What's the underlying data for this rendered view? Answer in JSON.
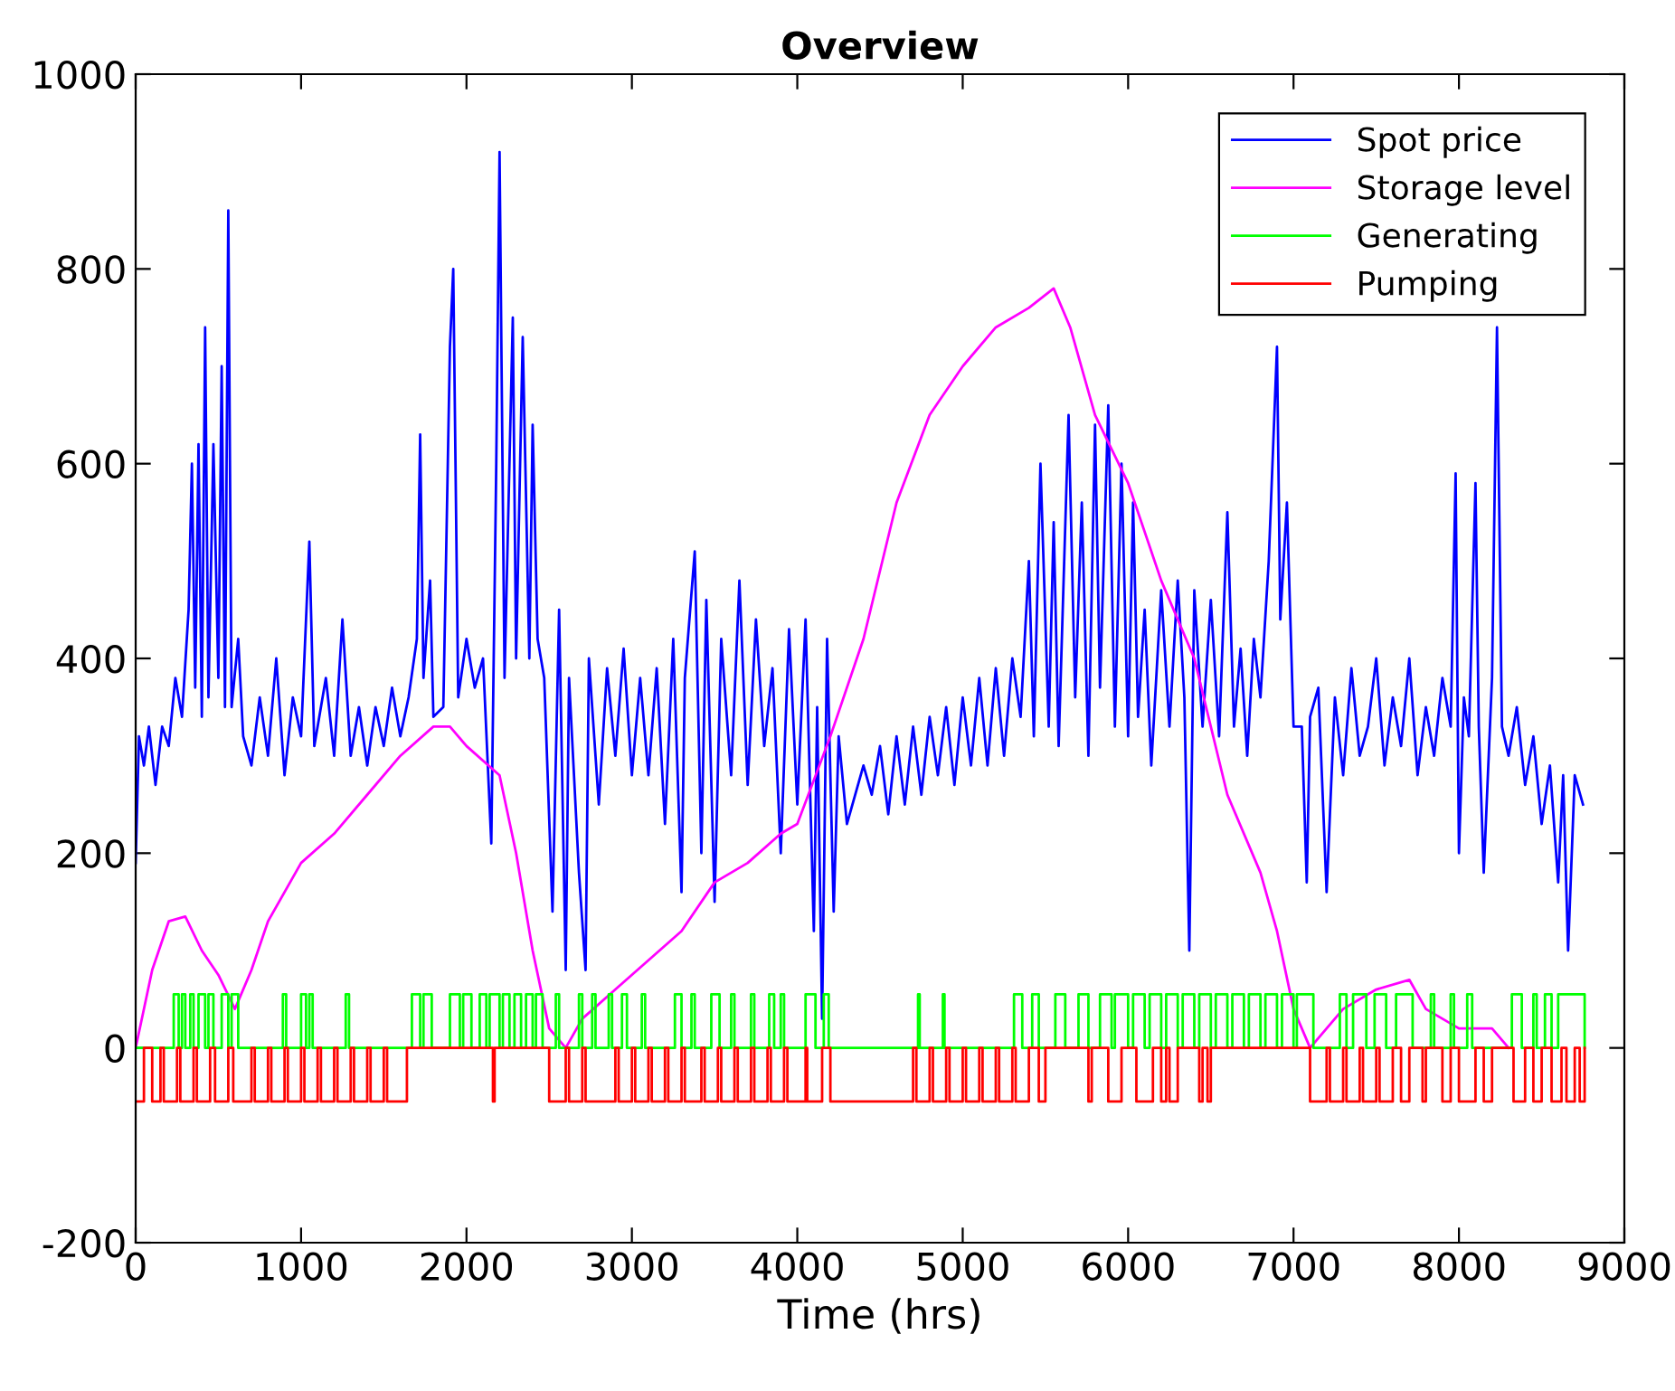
{
  "chart_data": {
    "type": "line",
    "title": "Overview",
    "xlabel": "Time (hrs)",
    "xlim": [
      0,
      9000
    ],
    "ylim": [
      -200,
      1000
    ],
    "xticks": [
      0,
      1000,
      2000,
      3000,
      4000,
      5000,
      6000,
      7000,
      8000,
      9000
    ],
    "yticks": [
      -200,
      0,
      200,
      400,
      600,
      800,
      1000
    ],
    "grid": false,
    "legend": "top right",
    "line_style": "solid",
    "marker": "none",
    "series": [
      {
        "name": "Spot price",
        "color": "#0000ff",
        "x": [
          0,
          20,
          50,
          80,
          120,
          160,
          200,
          240,
          280,
          320,
          340,
          360,
          380,
          400,
          420,
          440,
          470,
          500,
          520,
          540,
          560,
          580,
          620,
          650,
          700,
          750,
          800,
          850,
          900,
          950,
          1000,
          1050,
          1080,
          1150,
          1200,
          1250,
          1300,
          1350,
          1400,
          1450,
          1500,
          1550,
          1600,
          1650,
          1700,
          1720,
          1740,
          1780,
          1800,
          1860,
          1900,
          1920,
          1950,
          2000,
          2050,
          2100,
          2150,
          2180,
          2200,
          2230,
          2280,
          2300,
          2340,
          2380,
          2400,
          2430,
          2470,
          2520,
          2560,
          2600,
          2620,
          2680,
          2720,
          2740,
          2800,
          2850,
          2900,
          2950,
          3000,
          3050,
          3100,
          3150,
          3200,
          3250,
          3300,
          3320,
          3380,
          3420,
          3450,
          3500,
          3540,
          3600,
          3650,
          3700,
          3750,
          3800,
          3850,
          3900,
          3950,
          4000,
          4050,
          4100,
          4120,
          4150,
          4180,
          4220,
          4250,
          4300,
          4400,
          4450,
          4500,
          4550,
          4600,
          4650,
          4700,
          4750,
          4800,
          4850,
          4900,
          4950,
          5000,
          5050,
          5100,
          5150,
          5200,
          5250,
          5300,
          5350,
          5400,
          5430,
          5470,
          5520,
          5550,
          5580,
          5640,
          5680,
          5720,
          5760,
          5800,
          5830,
          5880,
          5920,
          5960,
          6000,
          6030,
          6060,
          6100,
          6140,
          6200,
          6250,
          6300,
          6340,
          6370,
          6400,
          6450,
          6500,
          6550,
          6600,
          6640,
          6680,
          6720,
          6760,
          6800,
          6850,
          6900,
          6920,
          6960,
          7000,
          7050,
          7080,
          7100,
          7150,
          7200,
          7250,
          7300,
          7350,
          7400,
          7450,
          7500,
          7550,
          7600,
          7650,
          7700,
          7750,
          7800,
          7850,
          7900,
          7950,
          7980,
          8000,
          8030,
          8060,
          8100,
          8120,
          8150,
          8200,
          8230,
          8260,
          8300,
          8350,
          8400,
          8450,
          8500,
          8550,
          8600,
          8630,
          8660,
          8700,
          8750
        ],
        "values": [
          190,
          320,
          290,
          330,
          270,
          330,
          310,
          380,
          340,
          450,
          600,
          370,
          620,
          340,
          740,
          360,
          620,
          380,
          700,
          350,
          860,
          350,
          420,
          320,
          290,
          360,
          300,
          400,
          280,
          360,
          320,
          520,
          310,
          380,
          300,
          440,
          300,
          350,
          290,
          350,
          310,
          370,
          320,
          360,
          420,
          630,
          380,
          480,
          340,
          350,
          720,
          800,
          360,
          420,
          370,
          400,
          210,
          600,
          920,
          380,
          750,
          400,
          730,
          400,
          640,
          420,
          380,
          140,
          450,
          80,
          380,
          180,
          80,
          400,
          250,
          390,
          300,
          410,
          280,
          380,
          280,
          390,
          230,
          420,
          160,
          380,
          510,
          200,
          460,
          150,
          420,
          280,
          480,
          270,
          440,
          310,
          390,
          200,
          430,
          250,
          440,
          120,
          350,
          30,
          420,
          140,
          320,
          230,
          290,
          260,
          310,
          240,
          320,
          250,
          330,
          260,
          340,
          280,
          350,
          270,
          360,
          290,
          380,
          290,
          390,
          300,
          400,
          340,
          500,
          320,
          600,
          330,
          540,
          310,
          650,
          360,
          560,
          300,
          640,
          370,
          660,
          330,
          600,
          320,
          560,
          340,
          450,
          290,
          470,
          330,
          480,
          360,
          100,
          470,
          330,
          460,
          320,
          550,
          330,
          410,
          300,
          420,
          360,
          500,
          720,
          440,
          560,
          330,
          330,
          170,
          340,
          370,
          160,
          360,
          280,
          390,
          300,
          330,
          400,
          290,
          360,
          310,
          400,
          280,
          350,
          300,
          380,
          330,
          590,
          200,
          360,
          320,
          580,
          330,
          180,
          380,
          740,
          330,
          300,
          350,
          270,
          320,
          230,
          290,
          170,
          280,
          100,
          280,
          250
        ]
      },
      {
        "name": "Storage level",
        "color": "#ff00ff",
        "x": [
          0,
          100,
          200,
          300,
          400,
          500,
          600,
          700,
          800,
          1000,
          1200,
          1400,
          1600,
          1800,
          1900,
          2000,
          2200,
          2300,
          2400,
          2500,
          2600,
          2700,
          2900,
          3100,
          3300,
          3500,
          3700,
          3900,
          4000,
          4200,
          4400,
          4600,
          4800,
          5000,
          5200,
          5400,
          5550,
          5650,
          5800,
          6000,
          6200,
          6400,
          6600,
          6800,
          6900,
          7000,
          7100,
          7300,
          7500,
          7700,
          7800,
          8000,
          8200,
          8300
        ],
        "values": [
          0,
          80,
          130,
          135,
          100,
          75,
          40,
          80,
          130,
          190,
          220,
          260,
          300,
          330,
          330,
          310,
          280,
          200,
          100,
          20,
          0,
          30,
          60,
          90,
          120,
          170,
          190,
          220,
          230,
          320,
          420,
          560,
          650,
          700,
          740,
          760,
          780,
          740,
          650,
          580,
          480,
          400,
          260,
          180,
          120,
          40,
          0,
          40,
          60,
          70,
          40,
          20,
          20,
          0
        ]
      },
      {
        "name": "Generating",
        "color": "#00ff00",
        "type": "step",
        "x": [
          0,
          230,
          260,
          280,
          300,
          330,
          350,
          380,
          420,
          440,
          470,
          520,
          560,
          580,
          620,
          890,
          910,
          1000,
          1030,
          1050,
          1070,
          1270,
          1290,
          1670,
          1720,
          1740,
          1790,
          1900,
          1960,
          1980,
          2030,
          2080,
          2120,
          2140,
          2200,
          2220,
          2260,
          2290,
          2330,
          2360,
          2400,
          2420,
          2460,
          2540,
          2560,
          2680,
          2700,
          2760,
          2780,
          2860,
          2880,
          2940,
          2970,
          3060,
          3080,
          3260,
          3300,
          3360,
          3380,
          3480,
          3530,
          3600,
          3620,
          3720,
          3740,
          3830,
          3860,
          3900,
          3920,
          4050,
          4110,
          4160,
          4190,
          4730,
          4740,
          4880,
          4890,
          5310,
          5360,
          5420,
          5460,
          5560,
          5620,
          5700,
          5760,
          5830,
          5900,
          5920,
          6000,
          6030,
          6100,
          6130,
          6200,
          6230,
          6300,
          6330,
          6400,
          6430,
          6500,
          6530,
          6600,
          6630,
          6700,
          6730,
          6800,
          6830,
          6900,
          6930,
          7000,
          7020,
          7120,
          7280,
          7320,
          7360,
          7440,
          7490,
          7560,
          7620,
          7720,
          7830,
          7850,
          7950,
          7970,
          8050,
          8080,
          8320,
          8380,
          8450,
          8470,
          8520,
          8560,
          8600,
          8760
        ],
        "values": [
          0,
          55,
          0,
          55,
          0,
          55,
          0,
          55,
          0,
          55,
          0,
          55,
          0,
          55,
          0,
          55,
          0,
          55,
          0,
          55,
          0,
          55,
          0,
          55,
          0,
          55,
          0,
          55,
          0,
          55,
          0,
          55,
          0,
          55,
          0,
          55,
          0,
          55,
          0,
          55,
          0,
          55,
          0,
          55,
          0,
          55,
          0,
          55,
          0,
          55,
          0,
          55,
          0,
          55,
          0,
          55,
          0,
          55,
          0,
          55,
          0,
          55,
          0,
          55,
          0,
          55,
          0,
          55,
          0,
          55,
          0,
          55,
          0,
          55,
          0,
          55,
          0,
          55,
          0,
          55,
          0,
          55,
          0,
          55,
          0,
          55,
          0,
          55,
          0,
          55,
          0,
          55,
          0,
          55,
          0,
          55,
          0,
          55,
          0,
          55,
          0,
          55,
          0,
          55,
          0,
          55,
          0,
          55,
          0,
          55,
          0,
          55,
          0,
          55,
          0,
          55,
          0,
          55,
          0,
          55,
          0,
          55,
          0,
          55,
          0,
          55,
          0,
          55,
          0,
          55,
          0,
          55,
          0
        ]
      },
      {
        "name": "Pumping",
        "color": "#ff0000",
        "type": "step",
        "x": [
          0,
          50,
          100,
          150,
          170,
          250,
          270,
          350,
          370,
          450,
          480,
          560,
          590,
          700,
          720,
          800,
          820,
          900,
          920,
          1000,
          1020,
          1100,
          1120,
          1200,
          1220,
          1300,
          1320,
          1400,
          1420,
          1500,
          1520,
          1640,
          2160,
          2170,
          2500,
          2600,
          2620,
          2700,
          2720,
          2900,
          2920,
          3000,
          3020,
          3100,
          3120,
          3200,
          3220,
          3300,
          3320,
          3420,
          3440,
          3520,
          3540,
          3620,
          3640,
          3720,
          3740,
          3820,
          3840,
          3920,
          3940,
          4050,
          4060,
          4150,
          4200,
          4700,
          4720,
          4800,
          4820,
          4900,
          4920,
          5000,
          5020,
          5100,
          5120,
          5200,
          5220,
          5300,
          5320,
          5400,
          5460,
          5500,
          5760,
          5780,
          5880,
          5960,
          6050,
          6150,
          6200,
          6230,
          6250,
          6300,
          6430,
          6450,
          6480,
          6500,
          7100,
          7200,
          7220,
          7300,
          7320,
          7400,
          7420,
          7500,
          7520,
          7600,
          7650,
          7700,
          7780,
          7800,
          7900,
          7950,
          8000,
          8100,
          8150,
          8200,
          8330,
          8400,
          8450,
          8500,
          8560,
          8620,
          8650,
          8700,
          8730,
          8760
        ],
        "values": [
          -55,
          0,
          -55,
          0,
          -55,
          0,
          -55,
          0,
          -55,
          0,
          -55,
          0,
          -55,
          0,
          -55,
          0,
          -55,
          0,
          -55,
          0,
          -55,
          0,
          -55,
          0,
          -55,
          0,
          -55,
          0,
          -55,
          0,
          -55,
          0,
          -55,
          0,
          -55,
          0,
          -55,
          0,
          -55,
          0,
          -55,
          0,
          -55,
          0,
          -55,
          0,
          -55,
          0,
          -55,
          0,
          -55,
          0,
          -55,
          0,
          -55,
          0,
          -55,
          0,
          -55,
          0,
          -55,
          0,
          -55,
          0,
          -55,
          0,
          -55,
          0,
          -55,
          0,
          -55,
          0,
          -55,
          0,
          -55,
          0,
          -55,
          0,
          -55,
          0,
          -55,
          0,
          -55,
          0,
          -55,
          0,
          -55,
          0,
          -55,
          0,
          -55,
          0,
          -55,
          0,
          -55,
          0,
          -55,
          0,
          -55,
          0,
          -55,
          0,
          -55,
          0,
          -55,
          0,
          -55,
          0,
          -55,
          0,
          -55,
          0,
          -55,
          0,
          -55,
          0,
          -55,
          0,
          -55,
          0,
          -55,
          0,
          -55,
          0,
          -55,
          0
        ]
      }
    ]
  }
}
